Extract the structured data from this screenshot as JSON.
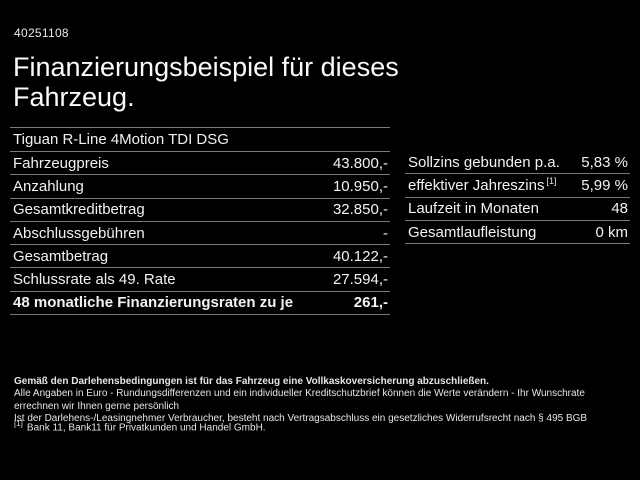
{
  "page": {
    "id_number": "40251108",
    "title_line1": "Finanzierungsbeispiel für dieses",
    "title_line2": "Fahrzeug."
  },
  "vehicle": {
    "model": "Tiguan R-Line 4Motion TDI DSG"
  },
  "finance_table": {
    "rows": [
      {
        "label": "Fahrzeugpreis",
        "value": "43.800,-"
      },
      {
        "label": "Anzahlung",
        "value": "10.950,-"
      },
      {
        "label": "Gesamtkreditbetrag",
        "value": "32.850,-"
      },
      {
        "label": "Abschlussgebühren",
        "value": "-"
      },
      {
        "label": "Gesamtbetrag",
        "value": "40.122,-"
      },
      {
        "label": "Schlussrate als 49. Rate",
        "value": "27.594,-"
      },
      {
        "label": "48 monatliche Finanzierungsraten zu je",
        "value": "261,-",
        "emphasis": "bold"
      }
    ]
  },
  "conditions_table": {
    "rows": [
      {
        "label": "Sollzins gebunden p.a.",
        "value": "5,83 %"
      },
      {
        "label": "effektiver Jahreszins",
        "sup": "[1]",
        "value": "5,99 %"
      },
      {
        "label": "Laufzeit in Monaten",
        "value": "48"
      },
      {
        "label": "Gesamtlaufleistung",
        "value": "0 km"
      }
    ]
  },
  "footer": {
    "line1": "Gemäß den Darlehensbedingungen ist für das Fahrzeug eine Vollkaskoversicherung abzuschließen.",
    "line2": "Alle Angaben in Euro - Rundungsdifferenzen und ein individueller Kreditschutzbrief können die Werte verändern - Ihr Wunschrate errechnen wir Ihnen gerne persönlich",
    "line3": "Ist der Darlehens-/Leasingnehmer Verbraucher, besteht nach Vertragsabschluss ein gesetzliches Widerrufsrecht nach § 495 BGB",
    "footnote_marker": "[1]",
    "footnote_text": "Bank 11, Bank11 für Privatkunden und Handel GmbH."
  },
  "colors": {
    "background": "#000000",
    "text": "#f2f2f2",
    "separator": "#7a7a7a"
  }
}
